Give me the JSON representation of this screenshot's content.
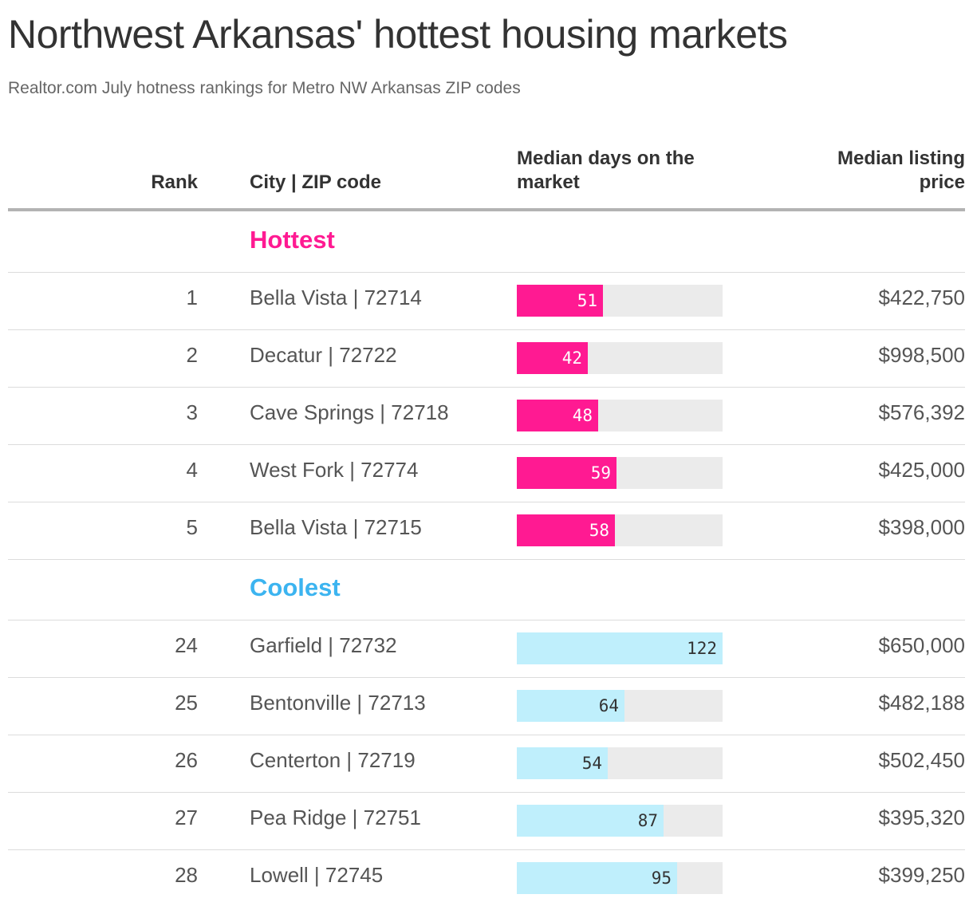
{
  "chart_data": {
    "type": "table",
    "title": "Northwest Arkansas' hottest housing markets",
    "subtitle": "Realtor.com July hotness rankings for Metro NW Arkansas ZIP codes",
    "columns": {
      "rank": "Rank",
      "city": "City | ZIP code",
      "days": "Median days on the market",
      "price": "Median listing price"
    },
    "bar_max": 122,
    "groups": [
      {
        "label": "Hottest",
        "color": "#ff1a92",
        "value_text_color": "#ffffff",
        "rows": [
          {
            "rank": "1",
            "city": "Bella Vista | 72714",
            "days": 51,
            "price": "$422,750"
          },
          {
            "rank": "2",
            "city": "Decatur | 72722",
            "days": 42,
            "price": "$998,500"
          },
          {
            "rank": "3",
            "city": "Cave Springs | 72718",
            "days": 48,
            "price": "$576,392"
          },
          {
            "rank": "4",
            "city": "West Fork | 72774",
            "days": 59,
            "price": "$425,000"
          },
          {
            "rank": "5",
            "city": "Bella Vista | 72715",
            "days": 58,
            "price": "$398,000"
          }
        ]
      },
      {
        "label": "Coolest",
        "color": "#bfeffc",
        "label_color": "#3cb4f0",
        "value_text_color": "#333333",
        "rows": [
          {
            "rank": "24",
            "city": "Garfield | 72732",
            "days": 122,
            "price": "$650,000"
          },
          {
            "rank": "25",
            "city": "Bentonville | 72713",
            "days": 64,
            "price": "$482,188"
          },
          {
            "rank": "26",
            "city": "Centerton | 72719",
            "days": 54,
            "price": "$502,450"
          },
          {
            "rank": "27",
            "city": "Pea Ridge | 72751",
            "days": 87,
            "price": "$395,320"
          },
          {
            "rank": "28",
            "city": "Lowell | 72745",
            "days": 95,
            "price": "$399,250"
          }
        ]
      }
    ]
  },
  "colors": {
    "track": "#ebebeb",
    "rule": "#dcdcdc",
    "header_rule": "#b3b3b3"
  }
}
